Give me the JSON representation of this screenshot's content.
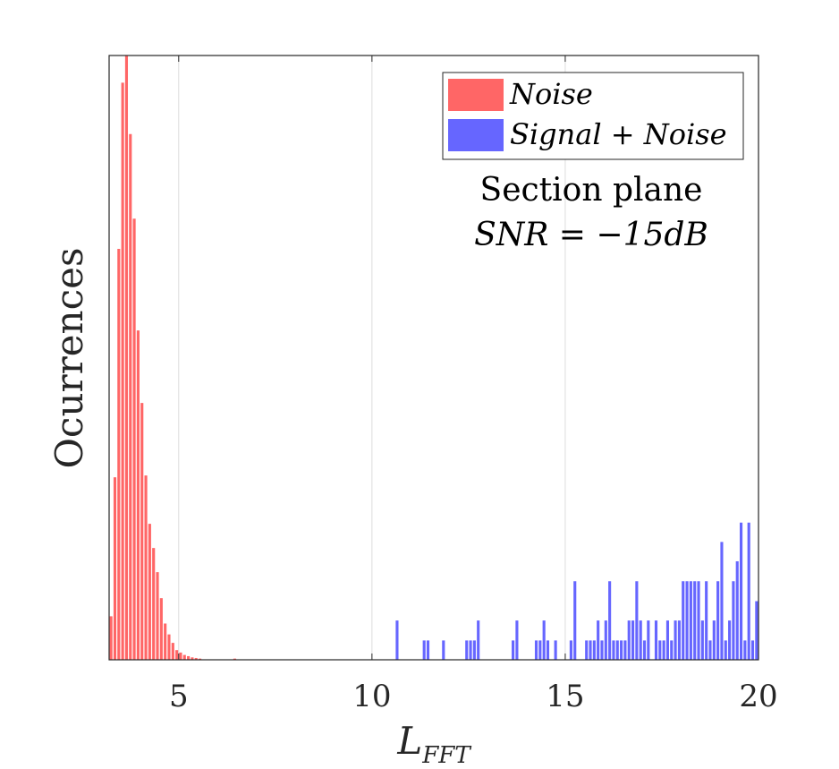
{
  "chart_data": {
    "type": "bar",
    "xlabel": "L",
    "xlabel_subscript": "FFT",
    "ylabel": "Ocurrences",
    "xlim": [
      3.2,
      20
    ],
    "ylim": [
      0,
      1000
    ],
    "xticks": [
      5,
      10,
      15,
      20
    ],
    "grid": "x",
    "legend_position": "top-right",
    "annotation": [
      "Section plane",
      "SNR = −15dB"
    ],
    "bin_width": 0.1,
    "series": [
      {
        "name": "Noise",
        "color": "#ff6666",
        "x": [
          3.25,
          3.35,
          3.45,
          3.55,
          3.65,
          3.75,
          3.85,
          3.95,
          4.05,
          4.15,
          4.25,
          4.35,
          4.45,
          4.55,
          4.65,
          4.75,
          4.85,
          4.95,
          5.05,
          5.15,
          5.25,
          5.35,
          5.45,
          5.55,
          6.45
        ],
        "values": [
          72,
          302,
          680,
          955,
          1000,
          870,
          730,
          545,
          425,
          305,
          225,
          185,
          145,
          102,
          60,
          42,
          28,
          16,
          12,
          8,
          6,
          4,
          3,
          2,
          2
        ]
      },
      {
        "name": "Signal + Noise",
        "color": "#6666ff",
        "x": [
          10.65,
          11.35,
          11.45,
          11.85,
          12.45,
          12.55,
          12.65,
          12.75,
          13.65,
          13.75,
          14.25,
          14.35,
          14.45,
          14.55,
          14.75,
          15.15,
          15.25,
          15.55,
          15.65,
          15.75,
          15.85,
          15.95,
          16.05,
          16.15,
          16.25,
          16.35,
          16.45,
          16.55,
          16.65,
          16.75,
          16.85,
          16.95,
          17.05,
          17.15,
          17.35,
          17.45,
          17.55,
          17.65,
          17.75,
          17.85,
          17.95,
          18.05,
          18.15,
          18.25,
          18.35,
          18.45,
          18.55,
          18.65,
          18.75,
          18.85,
          18.95,
          19.05,
          19.15,
          19.25,
          19.35,
          19.45,
          19.55,
          19.65,
          19.75,
          19.85,
          19.95
        ],
        "values": [
          65,
          32,
          32,
          32,
          32,
          32,
          32,
          65,
          32,
          65,
          32,
          32,
          65,
          32,
          32,
          32,
          130,
          32,
          32,
          32,
          65,
          32,
          65,
          130,
          32,
          32,
          32,
          32,
          65,
          65,
          130,
          65,
          32,
          65,
          65,
          32,
          32,
          65,
          32,
          65,
          65,
          130,
          130,
          130,
          130,
          130,
          65,
          130,
          32,
          65,
          130,
          195,
          32,
          65,
          130,
          163,
          227,
          32,
          227,
          32,
          97
        ]
      }
    ]
  }
}
